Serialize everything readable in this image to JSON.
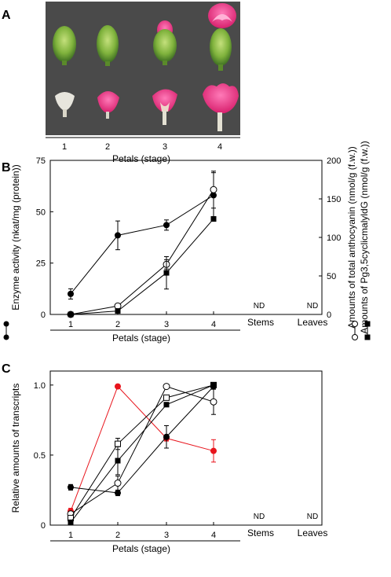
{
  "panelA": {
    "letter": "A",
    "stage_labels": [
      "1",
      "2",
      "3",
      "4"
    ],
    "xlabel": "Petals (stage)"
  },
  "panelB": {
    "letter": "B",
    "ylabel_left": "Enzyme activity (nkat/mg (protein))",
    "ylabel_right_1": "Amounts of total anthocyanin (nmol/g (f.w.))",
    "ylabel_right_2": "Amounts of Pg3,5cyclicmalyldG (nmol/g (f.w.))",
    "xlabel": "Petals (stage)",
    "extra_labels": [
      "Stems",
      "Leaves"
    ],
    "nd_label": "ND"
  },
  "panelC": {
    "letter": "C",
    "ylabel": "Relative amounts of transcripts",
    "xlabel": "Petals (stage)",
    "extra_labels": [
      "Stems",
      "Leaves"
    ],
    "nd_label": "ND"
  },
  "chart_data": [
    {
      "type": "line",
      "panel": "B",
      "categories": [
        "1",
        "2",
        "3",
        "4"
      ],
      "ylim": [
        0,
        75
      ],
      "yticks": [
        0,
        25,
        50,
        75
      ],
      "y2lim": [
        0,
        200
      ],
      "y2ticks": [
        0,
        50,
        100,
        150,
        200
      ],
      "series": [
        {
          "axis": "left",
          "marker": "filled-circle",
          "values": [
            10,
            38.5,
            43.5,
            58
          ],
          "errors": [
            2.5,
            7,
            2.5,
            11
          ]
        },
        {
          "axis": "right",
          "marker": "open-circle",
          "values": [
            0,
            11,
            65,
            162
          ],
          "errors": [
            0,
            1,
            6,
            24
          ]
        },
        {
          "axis": "right",
          "marker": "filled-square",
          "values": [
            0,
            4.5,
            54,
            124
          ],
          "errors": [
            0,
            0,
            21,
            0
          ]
        }
      ],
      "nd": [
        "Stems",
        "Leaves"
      ]
    },
    {
      "type": "line",
      "panel": "C",
      "categories": [
        "1",
        "2",
        "3",
        "4"
      ],
      "ylim": [
        0,
        1.1
      ],
      "yticks": [
        0,
        0.5,
        1.0
      ],
      "ytick_labels": [
        "0",
        "0.5",
        "1.0"
      ],
      "series": [
        {
          "marker": "red-circle",
          "color": "#e8141c",
          "values": [
            0.1,
            0.99,
            0.62,
            0.53
          ],
          "errors": [
            0.02,
            0,
            0.02,
            0.08
          ]
        },
        {
          "marker": "filled-circle",
          "values": [
            0.27,
            0.23,
            0.63,
            0.99
          ],
          "errors": [
            0.02,
            0.02,
            0.08,
            0
          ]
        },
        {
          "marker": "open-circle",
          "values": [
            0.08,
            0.3,
            0.99,
            0.88
          ],
          "errors": [
            0.01,
            0.05,
            0,
            0.09
          ]
        },
        {
          "marker": "open-square",
          "values": [
            0.05,
            0.58,
            0.91,
            1.0
          ],
          "errors": [
            0.01,
            0.04,
            0.01,
            0
          ]
        },
        {
          "marker": "filled-square",
          "values": [
            0.02,
            0.46,
            0.86,
            1.0
          ],
          "errors": [
            0.01,
            0.1,
            0.01,
            0
          ]
        }
      ],
      "nd": [
        "Stems",
        "Leaves"
      ]
    }
  ]
}
